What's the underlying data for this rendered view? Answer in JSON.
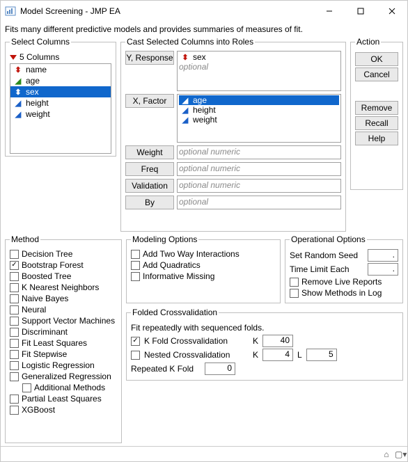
{
  "window": {
    "title": "Model Screening - JMP EA"
  },
  "description": "Fits many different predictive models and provides summaries of measures of fit.",
  "selectColumns": {
    "legend": "Select Columns",
    "countLabel": "5 Columns",
    "items": [
      {
        "name": "name",
        "glyph": "red"
      },
      {
        "name": "age",
        "glyph": "green"
      },
      {
        "name": "sex",
        "glyph": "red",
        "selected": true
      },
      {
        "name": "height",
        "glyph": "blue"
      },
      {
        "name": "weight",
        "glyph": "blue"
      }
    ]
  },
  "castRoles": {
    "legend": "Cast Selected Columns into Roles",
    "roles": {
      "yResponse": {
        "label": "Y, Response",
        "items": [
          {
            "name": "sex",
            "glyph": "red"
          }
        ],
        "optional": "optional"
      },
      "xFactor": {
        "label": "X, Factor",
        "items": [
          {
            "name": "age",
            "glyph": "green",
            "selected": true
          },
          {
            "name": "height",
            "glyph": "blue"
          },
          {
            "name": "weight",
            "glyph": "blue"
          }
        ]
      },
      "weight": {
        "label": "Weight",
        "optional": "optional numeric"
      },
      "freq": {
        "label": "Freq",
        "optional": "optional numeric"
      },
      "validation": {
        "label": "Validation",
        "optional": "optional numeric"
      },
      "by": {
        "label": "By",
        "optional": "optional"
      }
    }
  },
  "action": {
    "legend": "Action",
    "ok": "OK",
    "cancel": "Cancel",
    "remove": "Remove",
    "recall": "Recall",
    "help": "Help"
  },
  "method": {
    "legend": "Method",
    "items": [
      {
        "label": "Decision Tree",
        "checked": false
      },
      {
        "label": "Bootstrap Forest",
        "checked": true
      },
      {
        "label": "Boosted Tree",
        "checked": false
      },
      {
        "label": "K Nearest Neighbors",
        "checked": false
      },
      {
        "label": "Naive Bayes",
        "checked": false
      },
      {
        "label": "Neural",
        "checked": false
      },
      {
        "label": "Support Vector Machines",
        "checked": false
      },
      {
        "label": "Discriminant",
        "checked": false
      },
      {
        "label": "Fit Least Squares",
        "checked": false
      },
      {
        "label": "Fit Stepwise",
        "checked": false
      },
      {
        "label": "Logistic Regression",
        "checked": false
      },
      {
        "label": "Generalized Regression",
        "checked": false
      },
      {
        "label": "Additional Methods",
        "checked": false,
        "indent": true
      },
      {
        "label": "Partial Least Squares",
        "checked": false
      },
      {
        "label": "XGBoost",
        "checked": false
      }
    ]
  },
  "modelingOptions": {
    "legend": "Modeling Options",
    "items": [
      {
        "label": "Add Two Way Interactions",
        "checked": false
      },
      {
        "label": "Add Quadratics",
        "checked": false
      },
      {
        "label": "Informative Missing",
        "checked": false
      }
    ]
  },
  "operationalOptions": {
    "legend": "Operational Options",
    "seedLabel": "Set Random Seed",
    "seedValue": ".",
    "timeLabel": "Time Limit Each",
    "timeValue": ".",
    "removeLive": {
      "label": "Remove Live Reports",
      "checked": false
    },
    "showMethods": {
      "label": "Show Methods in Log",
      "checked": false
    }
  },
  "foldedCV": {
    "legend": "Folded Crossvalidation",
    "desc": "Fit repeatedly with sequenced folds.",
    "kfold": {
      "label": "K Fold Crossvalidation",
      "checked": true,
      "kLabel": "K",
      "kValue": "40"
    },
    "nested": {
      "label": "Nested Crossvalidation",
      "checked": false,
      "kLabel": "K",
      "kValue": "4",
      "lLabel": "L",
      "lValue": "5"
    },
    "repeated": {
      "label": "Repeated K Fold",
      "value": "0"
    }
  }
}
